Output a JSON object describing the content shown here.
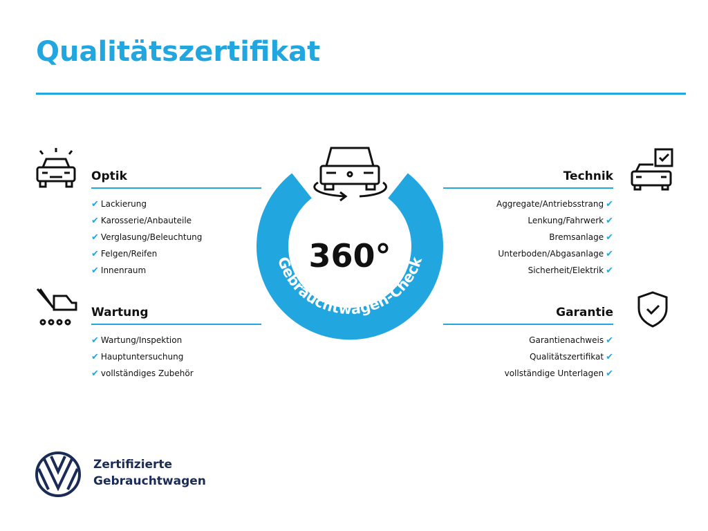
{
  "title": "Qualitätszertifikat",
  "colors": {
    "accent": "#22a6df",
    "brand": "#1a2b55"
  },
  "center": {
    "value": "360°",
    "ring_text": "Gebrauchtwagen-Check",
    "icon": "car-rotate-icon"
  },
  "sections": {
    "optik": {
      "title": "Optik",
      "icon": "car-shine-icon",
      "items": [
        "Lackierung",
        "Karosserie/Anbauteile",
        "Verglasung/Beleuchtung",
        "Felgen/Reifen",
        "Innenraum"
      ]
    },
    "wartung": {
      "title": "Wartung",
      "icon": "service-tools-icon",
      "items": [
        "Wartung/Inspektion",
        "Hauptuntersuchung",
        "vollständiges Zubehör"
      ]
    },
    "technik": {
      "title": "Technik",
      "icon": "car-checklist-icon",
      "items": [
        "Aggregate/Antriebsstrang",
        "Lenkung/Fahrwerk",
        "Bremsanlage",
        "Unterboden/Abgasanlage",
        "Sicherheit/Elektrik"
      ]
    },
    "garantie": {
      "title": "Garantie",
      "icon": "shield-check-icon",
      "items": [
        "Garantienachweis",
        "Qualitätszertifikat",
        "vollständige Unterlagen"
      ]
    }
  },
  "check_glyph": "✔",
  "footer": {
    "line1": "Zertifizierte",
    "line2": "Gebrauchtwagen",
    "logo": "vw-logo"
  }
}
